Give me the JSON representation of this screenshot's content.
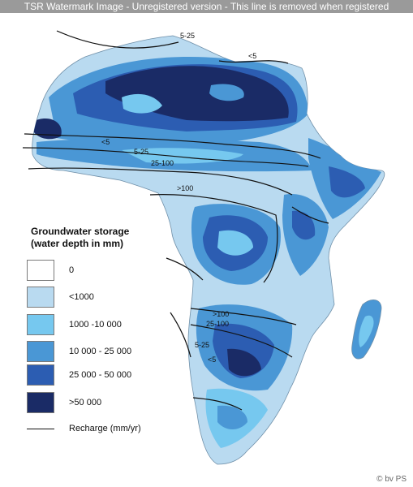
{
  "watermark": "TSR Watermark Image - Unregistered version - This line is removed when registered",
  "legend": {
    "title_line1": "Groundwater storage",
    "title_line2": "(water depth in mm)",
    "classes": [
      {
        "label": "0",
        "color": "#ffffff"
      },
      {
        "label": "<1000",
        "color": "#b9daf0"
      },
      {
        "label": "1000 -10 000",
        "color": "#76c8ef"
      },
      {
        "label": "10 000 - 25 000",
        "color": "#4a97d5"
      },
      {
        "label": "25 000 - 50 000",
        "color": "#2c5db2"
      },
      {
        "label": ">50 000",
        "color": "#1a2b66"
      }
    ],
    "recharge_label": "Recharge (mm/yr)"
  },
  "contour_labels": [
    "5-25",
    "<5",
    "<5",
    "5-25",
    "25-100",
    ">100",
    ">100",
    "25-100",
    "5-25",
    "<5"
  ],
  "copyright": "© bv PS"
}
